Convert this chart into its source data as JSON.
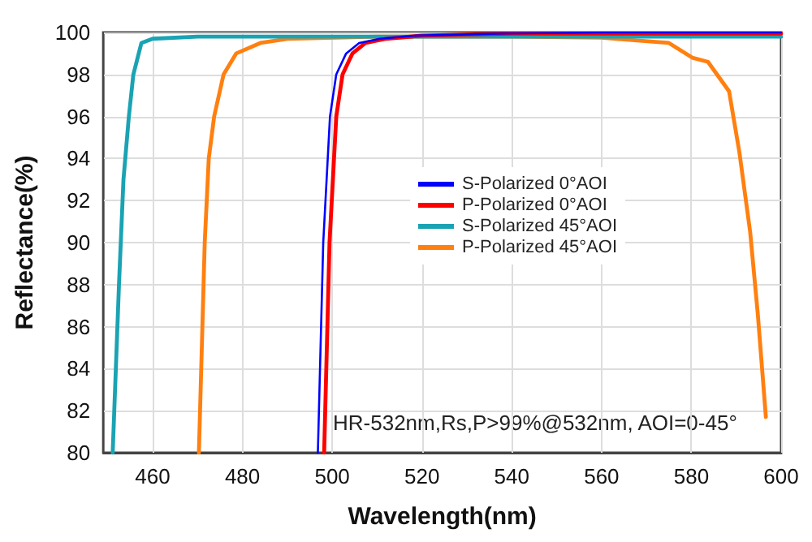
{
  "chart_data": {
    "type": "line",
    "xlabel": "Wavelength(nm)",
    "ylabel": "Reflectance(%)",
    "xlim": [
      449,
      600
    ],
    "xticks": [
      460,
      480,
      500,
      520,
      540,
      560,
      580,
      600
    ],
    "ylim": [
      80,
      100
    ],
    "yticks": [
      80,
      82,
      84,
      86,
      88,
      90,
      92,
      94,
      96,
      98,
      100
    ],
    "grid": true,
    "legend": "right",
    "marker": "none",
    "line_style": "solid",
    "annotations": [
      "HR-532nm,Rs,P>99%@532nm, AOI=0-45°"
    ],
    "series": [
      {
        "name": "S-Polarized 0°AOI",
        "color": "#0000ff",
        "x": [
          496.8,
          498,
          499.5,
          500.9,
          503.1,
          506,
          510.6,
          518.6,
          528.6,
          538.6,
          560,
          580,
          600
        ],
        "values": [
          80,
          90,
          96,
          98,
          99,
          99.5,
          99.7,
          99.85,
          99.9,
          99.95,
          100,
          100,
          100
        ]
      },
      {
        "name": "P-Polarized 0°AOI",
        "color": "#ff0000",
        "x": [
          498.2,
          499.4,
          500.9,
          502.3,
          504.5,
          507.4,
          512,
          520,
          530,
          540,
          560,
          580,
          600
        ],
        "values": [
          80,
          90,
          96,
          98,
          99,
          99.5,
          99.7,
          99.85,
          99.9,
          99.95,
          99.95,
          99.95,
          99.95
        ]
      },
      {
        "name": "S-Polarized 45°AOI",
        "color": "#1aa3b3",
        "x": [
          451.1,
          452.5,
          453.5,
          454.7,
          455.7,
          457.5,
          460,
          470,
          500,
          550,
          600
        ],
        "values": [
          80,
          88,
          93,
          96,
          98,
          99.5,
          99.7,
          99.8,
          99.8,
          99.8,
          99.8
        ]
      },
      {
        "name": "P-Polarized 45°AOI",
        "color": "#ff8010",
        "x": [
          470.3,
          471.6,
          472.5,
          473.7,
          475.8,
          478.6,
          484,
          490,
          510,
          540,
          560,
          575,
          580.2,
          583.7,
          588.4,
          590.7,
          593.1,
          594.8,
          596.6
        ],
        "values": [
          80,
          90,
          94,
          96,
          98,
          99,
          99.5,
          99.7,
          99.8,
          99.8,
          99.75,
          99.5,
          98.8,
          98.6,
          97.2,
          94.3,
          90.5,
          86.6,
          81.7
        ]
      }
    ]
  }
}
